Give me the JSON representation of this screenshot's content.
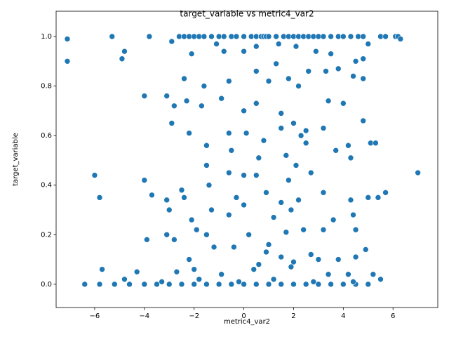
{
  "chart_data": {
    "type": "scatter",
    "title": "target_variable vs metric4_var2",
    "x_label": "metric4_var2",
    "y_label": "target_variable",
    "color": "#1f77b4",
    "xlim": [
      -7.55,
      7.8
    ],
    "ylim": [
      -0.094,
      1.102
    ],
    "xticks": [
      {
        "value": -6,
        "label": "−6"
      },
      {
        "value": -4,
        "label": "−4"
      },
      {
        "value": -2,
        "label": "−2"
      },
      0,
      2,
      4,
      6
    ],
    "yticks": [
      {
        "value": 0.0,
        "label": "0.0"
      },
      0.2,
      0.4,
      0.6,
      0.8,
      {
        "value": 1.0,
        "label": "1.0"
      }
    ],
    "grid": false,
    "x": [
      -7.1,
      -5.3,
      -3.8,
      -2.6,
      -2.4,
      -2.2,
      -2.0,
      -1.8,
      -1.6,
      -1.3,
      -1.0,
      -0.8,
      -0.5,
      -0.3,
      0.0,
      0.3,
      0.5,
      0.7,
      0.8,
      0.9,
      1.0,
      1.3,
      1.6,
      1.8,
      2.0,
      2.2,
      2.4,
      2.6,
      2.8,
      3.0,
      3.2,
      3.5,
      3.8,
      4.0,
      4.3,
      4.6,
      4.8,
      5.5,
      5.7,
      6.1,
      6.2,
      -7.1,
      -4.9,
      -4.8,
      -2.9,
      -2.1,
      -1.1,
      -0.8,
      0.0,
      0.5,
      1.4,
      2.1,
      2.9,
      3.5,
      4.5,
      4.8,
      5.0,
      6.3,
      4.8,
      -2.4,
      -1.6,
      -0.6,
      0.5,
      1.0,
      1.3,
      1.8,
      2.2,
      2.6,
      3.3,
      3.8,
      4.0,
      4.4,
      -4.0,
      -3.1,
      -2.8,
      -2.3,
      -1.7,
      -0.9,
      0.0,
      0.5,
      1.5,
      2.0,
      2.5,
      3.4,
      4.8,
      -2.9,
      -2.2,
      -0.6,
      0.1,
      0.8,
      1.5,
      2.3,
      3.2,
      4.2,
      5.1,
      5.3,
      -1.5,
      -0.5,
      0.6,
      1.7,
      2.5,
      3.7,
      4.3,
      -6.0,
      -4.0,
      -1.5,
      -0.6,
      0.0,
      0.5,
      1.8,
      2.1,
      2.7,
      3.2,
      5.0,
      5.7,
      7.0,
      -5.8,
      -3.7,
      -3.1,
      -2.5,
      -2.4,
      -1.4,
      -0.3,
      0.0,
      0.9,
      1.5,
      2.2,
      4.3,
      5.4,
      -3.0,
      -2.1,
      -1.3,
      -0.6,
      1.2,
      1.9,
      3.6,
      4.4,
      -3.9,
      -3.1,
      -2.8,
      -1.9,
      -1.5,
      0.2,
      1.0,
      1.7,
      2.4,
      3.2,
      4.5,
      4.9,
      -2.2,
      -1.2,
      -0.4,
      0.4,
      0.9,
      1.5,
      2.0,
      2.7,
      3.0,
      3.8,
      4.5,
      -5.7,
      -4.3,
      -2.7,
      -2.0,
      -0.9,
      0.6,
      1.9,
      3.4,
      4.2,
      5.2,
      5.5,
      -6.4,
      -5.8,
      -5.2,
      -4.6,
      -4.0,
      -3.5,
      -3.0,
      -2.5,
      -2.0,
      -1.5,
      -1.0,
      -0.5,
      0.0,
      0.5,
      1.0,
      1.5,
      2.0,
      2.5,
      3.0,
      3.5,
      4.0,
      4.5,
      5.0,
      -4.8,
      -3.3,
      -1.8,
      -0.2,
      1.2,
      2.8,
      4.4
    ],
    "y": [
      0.99,
      1.0,
      1.0,
      1.0,
      1.0,
      1.0,
      1.0,
      1.0,
      1.0,
      1.0,
      1.0,
      1.0,
      1.0,
      1.0,
      1.0,
      1.0,
      1.0,
      1.0,
      1.0,
      1.0,
      1.0,
      1.0,
      1.0,
      1.0,
      1.0,
      1.0,
      1.0,
      1.0,
      1.0,
      1.0,
      1.0,
      1.0,
      1.0,
      1.0,
      1.0,
      1.0,
      1.0,
      1.0,
      1.0,
      1.0,
      1.0,
      0.9,
      0.91,
      0.94,
      0.98,
      0.93,
      0.97,
      0.94,
      0.94,
      0.96,
      0.97,
      0.96,
      0.94,
      0.93,
      0.9,
      0.91,
      0.97,
      0.99,
      0.83,
      0.83,
      0.8,
      0.82,
      0.86,
      0.82,
      0.89,
      0.83,
      0.8,
      0.86,
      0.86,
      0.87,
      0.73,
      0.84,
      0.76,
      0.76,
      0.72,
      0.74,
      0.72,
      0.75,
      0.7,
      0.73,
      0.69,
      0.65,
      0.62,
      0.74,
      0.66,
      0.65,
      0.61,
      0.61,
      0.61,
      0.58,
      0.63,
      0.6,
      0.63,
      0.56,
      0.57,
      0.57,
      0.56,
      0.54,
      0.51,
      0.52,
      0.57,
      0.54,
      0.51,
      0.44,
      0.42,
      0.48,
      0.45,
      0.44,
      0.44,
      0.42,
      0.48,
      0.45,
      0.37,
      0.35,
      0.37,
      0.45,
      0.35,
      0.36,
      0.34,
      0.38,
      0.35,
      0.4,
      0.35,
      0.32,
      0.37,
      0.33,
      0.34,
      0.34,
      0.35,
      0.3,
      0.26,
      0.3,
      0.28,
      0.27,
      0.3,
      0.26,
      0.28,
      0.18,
      0.2,
      0.18,
      0.22,
      0.2,
      0.2,
      0.16,
      0.21,
      0.22,
      0.22,
      0.22,
      0.14,
      0.1,
      0.15,
      0.15,
      0.06,
      0.13,
      0.11,
      0.09,
      0.12,
      0.1,
      0.1,
      0.11,
      0.06,
      0.05,
      0.05,
      0.06,
      0.04,
      0.08,
      0.07,
      0.04,
      0.04,
      0.04,
      0.02,
      0.0,
      0.0,
      0.0,
      0.0,
      0.0,
      0.0,
      0.0,
      0.0,
      0.0,
      0.0,
      0.0,
      0.0,
      0.0,
      0.0,
      0.0,
      0.0,
      0.0,
      0.0,
      0.0,
      0.0,
      0.0,
      0.0,
      0.0,
      0.02,
      0.01,
      0.02,
      0.01,
      0.02,
      0.01,
      0.01
    ]
  }
}
